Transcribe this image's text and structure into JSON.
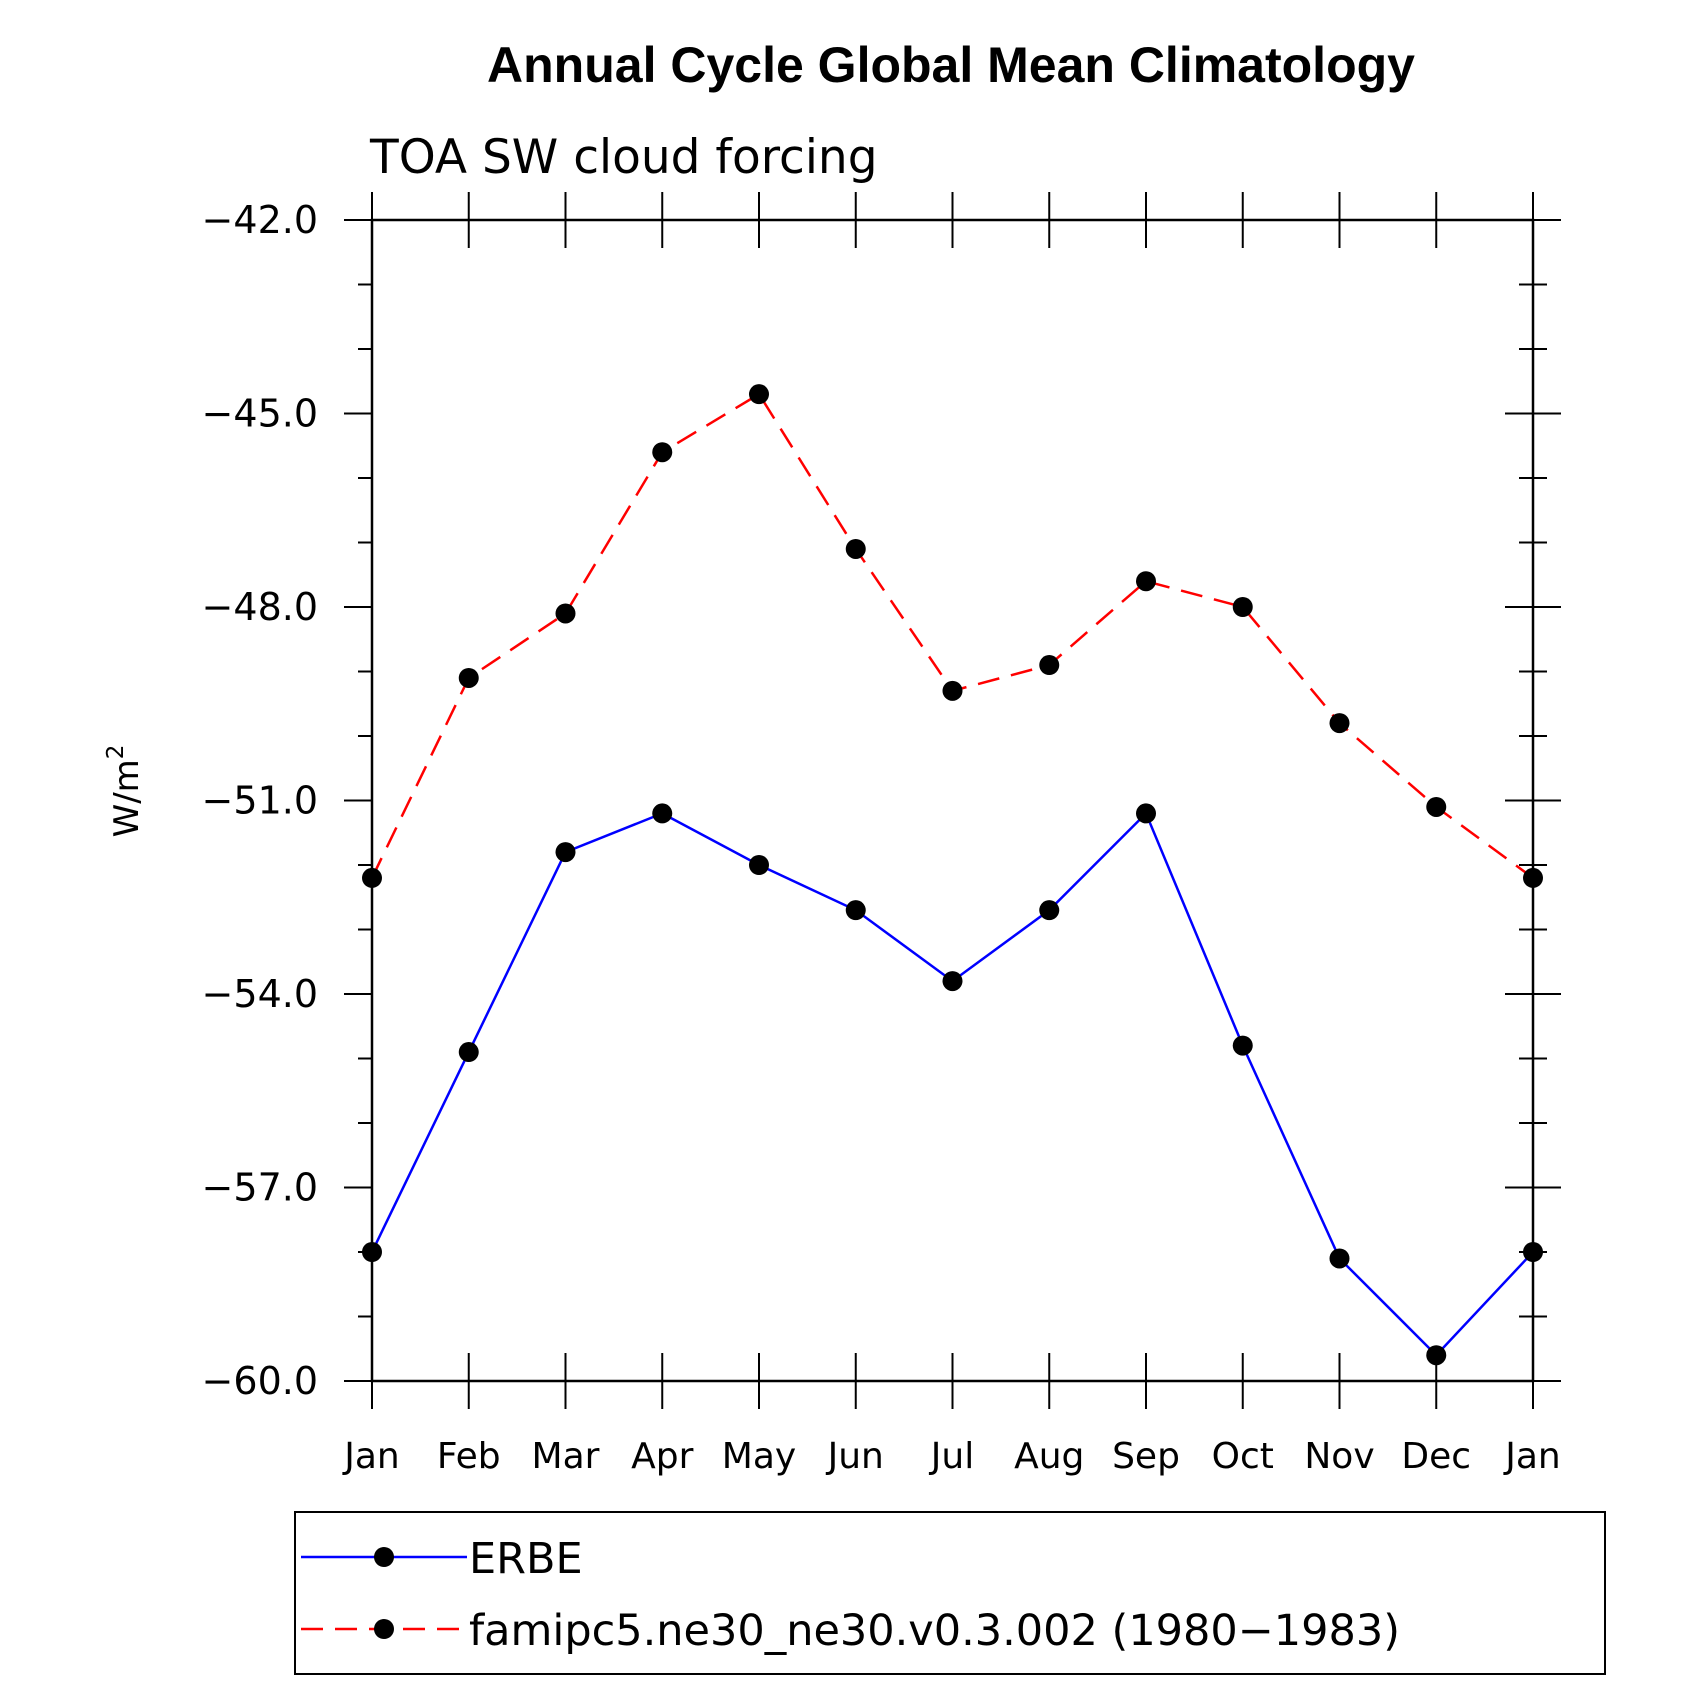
{
  "chart_data": {
    "type": "line",
    "title": "Annual Cycle Global Mean Climatology",
    "subtitle": "TOA SW cloud forcing",
    "ylabel": "W/m",
    "ylabel_superscript": "2",
    "xlabel": "",
    "categories": [
      "Jan",
      "Feb",
      "Mar",
      "Apr",
      "May",
      "Jun",
      "Jul",
      "Aug",
      "Sep",
      "Oct",
      "Nov",
      "Dec",
      "Jan"
    ],
    "ylim": [
      -60.0,
      -42.0
    ],
    "yticks": [
      "-42.0",
      "-45.0",
      "-48.0",
      "-51.0",
      "-54.0",
      "-57.0",
      "-60.0"
    ],
    "ytick_values": [
      -42,
      -45,
      -48,
      -51,
      -54,
      -57,
      -60
    ],
    "grid": false,
    "legend_position": "bottom",
    "series": [
      {
        "name": "ERBE",
        "color": "#0000ff",
        "line_style": "solid",
        "marker": "filled-circle",
        "values": [
          -58.0,
          -54.9,
          -51.8,
          -51.2,
          -52.0,
          -52.7,
          -53.8,
          -52.7,
          -51.2,
          -54.8,
          -58.1,
          -59.6,
          -58.0
        ]
      },
      {
        "name": "famipc5.ne30_ne30.v0.3.002 (1980−1983)",
        "color": "#ff0000",
        "line_style": "dashed",
        "marker": "filled-circle",
        "values": [
          -52.2,
          -49.1,
          -48.1,
          -45.6,
          -44.7,
          -47.1,
          -49.3,
          -48.9,
          -47.6,
          -48.0,
          -49.8,
          -51.1,
          -52.2
        ]
      }
    ]
  }
}
